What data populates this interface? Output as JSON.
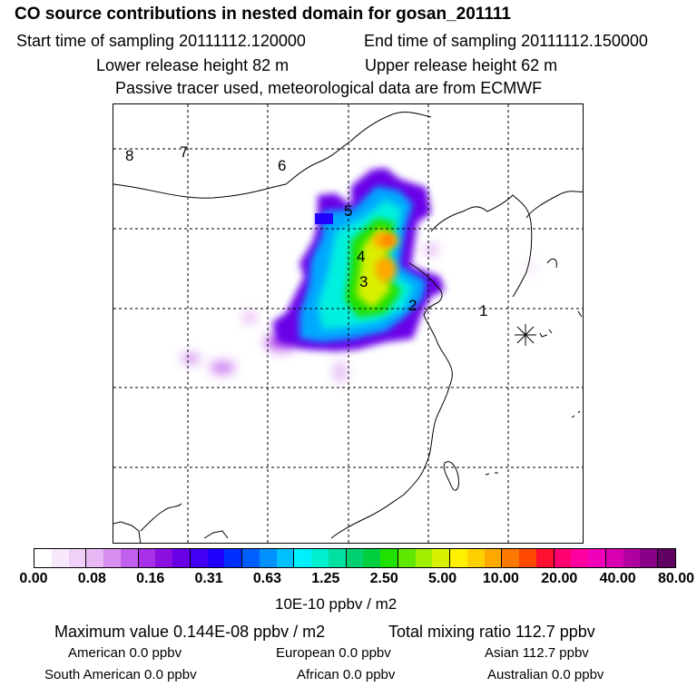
{
  "header": {
    "title": "CO  source contributions in nested domain for gosan_201111",
    "start_label": "Start time of sampling 20111112.120000",
    "end_label": "End time of sampling 20111112.150000",
    "lower_height": "Lower release height   82 m",
    "upper_height": "Upper release height   62 m",
    "note": "Passive tracer used, meteorological data are from ECMWF"
  },
  "map": {
    "region_labels": [
      "8",
      "7",
      "6",
      "5",
      "4",
      "3",
      "2",
      "1"
    ],
    "receptor_marker": "star-icon"
  },
  "colorbar": {
    "colors": [
      "#ffffff",
      "#f8e8fc",
      "#f0d0f8",
      "#e8b8f4",
      "#d890f0",
      "#c060ec",
      "#a830e8",
      "#8a10e0",
      "#6a00e8",
      "#4400f4",
      "#2000ff",
      "#0030ff",
      "#0060ff",
      "#0090ff",
      "#00c0ff",
      "#00f0ff",
      "#00f0d0",
      "#00e0a0",
      "#00d070",
      "#00d040",
      "#20e000",
      "#60e800",
      "#a0f000",
      "#d8f000",
      "#fff000",
      "#ffd000",
      "#ffa800",
      "#ff7800",
      "#ff4800",
      "#ff1030",
      "#ff0070",
      "#ff00a0",
      "#f000b8",
      "#d800b0",
      "#b000a0",
      "#880088",
      "#600060"
    ],
    "tick_labels": [
      "0.00",
      "0.08",
      "0.16",
      "0.31",
      "0.63",
      "1.25",
      "2.50",
      "5.00",
      "10.00",
      "20.00",
      "40.00",
      "80.00"
    ],
    "unit": "10E-10 ppbv / m2"
  },
  "summary": {
    "max_value": "Maximum value  0.144E-08 ppbv / m2",
    "total": "Total mixing ratio      112.7 ppbv",
    "american": "American        0.0 ppbv",
    "european": "European        0.0 ppbv",
    "asian": "Asian      112.7 ppbv",
    "south_american": "South American        0.0 ppbv",
    "african": "African        0.0 ppbv",
    "australian": "Australian        0.0 ppbv"
  }
}
